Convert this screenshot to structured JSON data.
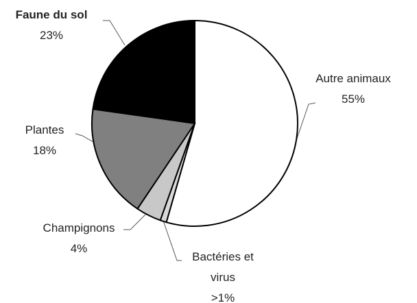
{
  "chart_data": {
    "type": "pie",
    "categories": [
      "Autre animaux",
      "Bactéries et virus",
      "Champignons",
      "Plantes",
      "Faune du sol"
    ],
    "values": [
      55,
      1,
      4,
      18,
      23
    ],
    "value_labels": [
      "55%",
      ">1%",
      "4%",
      "18%",
      "23%"
    ],
    "colors": [
      "#ffffff",
      "#d9d9d9",
      "#c8c8c8",
      "#808080",
      "#000000"
    ]
  }
}
